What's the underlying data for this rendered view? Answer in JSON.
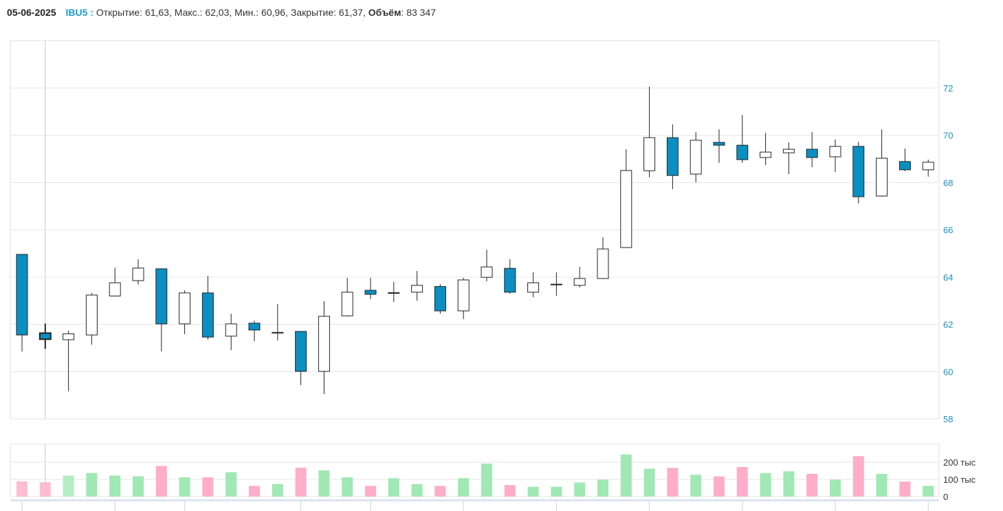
{
  "header": {
    "date": "05-06-2025",
    "ticker": "IBU5 :",
    "open_label": "Открытие:",
    "open": "61,63",
    "high_label": "Макс.:",
    "high": "62,03",
    "low_label": "Мин.:",
    "low": "60,96",
    "close_label": "Закрытие:",
    "close": "61,37",
    "volume_label": "Объём",
    "volume": "83 347"
  },
  "colors": {
    "down_body": "#0a8fc2",
    "up_body": "#ffffff",
    "down_volume": "#ffadc8",
    "up_volume": "#a0e8b4",
    "accent": "#1a9bd0"
  },
  "chart_data": [
    {
      "type": "candlestick",
      "ylim": [
        58,
        74
      ],
      "yticks": [
        "58",
        "60",
        "62",
        "64",
        "66",
        "68",
        "70",
        "72"
      ],
      "grid": true,
      "selected_index": 1,
      "candles": [
        [
          64.96,
          64.96,
          60.85,
          61.55
        ],
        [
          61.63,
          62.03,
          60.96,
          61.37
        ],
        [
          61.35,
          61.73,
          59.17,
          61.6
        ],
        [
          61.55,
          63.33,
          61.14,
          63.24
        ],
        [
          63.2,
          64.4,
          63.18,
          63.76
        ],
        [
          63.85,
          64.75,
          63.68,
          64.38
        ],
        [
          64.35,
          64.35,
          60.85,
          62.02
        ],
        [
          62.02,
          63.44,
          61.58,
          63.33
        ],
        [
          63.33,
          64.05,
          61.35,
          61.46
        ],
        [
          61.5,
          62.45,
          60.91,
          62.02
        ],
        [
          62.05,
          62.16,
          61.29,
          61.76
        ],
        [
          61.63,
          62.86,
          61.32,
          61.66
        ],
        [
          61.7,
          61.7,
          59.43,
          60.01
        ],
        [
          60.01,
          62.98,
          59.05,
          62.34
        ],
        [
          62.36,
          63.97,
          62.33,
          63.36
        ],
        [
          63.44,
          63.97,
          63.07,
          63.27
        ],
        [
          63.33,
          63.8,
          62.95,
          63.34
        ],
        [
          63.36,
          64.26,
          63.0,
          63.65
        ],
        [
          63.6,
          63.7,
          62.45,
          62.57
        ],
        [
          62.57,
          63.97,
          62.22,
          63.88
        ],
        [
          63.99,
          65.16,
          63.82,
          64.43
        ],
        [
          64.37,
          64.75,
          63.3,
          63.36
        ],
        [
          63.36,
          64.2,
          63.15,
          63.76
        ],
        [
          63.68,
          64.2,
          63.21,
          63.7
        ],
        [
          63.65,
          64.43,
          63.56,
          63.94
        ],
        [
          63.94,
          65.68,
          63.92,
          65.19
        ],
        [
          65.25,
          69.41,
          65.25,
          68.51
        ],
        [
          68.5,
          72.06,
          68.22,
          69.9
        ],
        [
          69.9,
          70.46,
          67.72,
          68.3
        ],
        [
          68.36,
          70.14,
          68.01,
          69.79
        ],
        [
          69.7,
          70.25,
          68.83,
          69.58
        ],
        [
          69.58,
          70.86,
          68.83,
          68.97
        ],
        [
          69.06,
          70.1,
          68.74,
          69.29
        ],
        [
          69.26,
          69.7,
          68.36,
          69.41
        ],
        [
          69.41,
          70.14,
          68.65,
          69.06
        ],
        [
          69.09,
          69.82,
          68.45,
          69.53
        ],
        [
          69.53,
          69.73,
          67.11,
          67.4
        ],
        [
          67.43,
          70.25,
          67.4,
          69.03
        ],
        [
          68.89,
          69.44,
          68.48,
          68.54
        ],
        [
          68.54,
          68.97,
          68.25,
          68.86
        ]
      ]
    },
    {
      "type": "bar",
      "ylim": [
        0,
        300000
      ],
      "yticks": [
        "0",
        "100 тыс",
        "200 тыс"
      ],
      "values": [
        88000,
        83347,
        122000,
        137000,
        122000,
        118000,
        178000,
        112000,
        112000,
        142000,
        62000,
        72000,
        168000,
        152000,
        112000,
        62000,
        107000,
        72000,
        62000,
        107000,
        192000,
        67000,
        57000,
        57000,
        82000,
        98000,
        245000,
        162000,
        167000,
        127000,
        117000,
        172000,
        137000,
        147000,
        132000,
        98000,
        235000,
        132000,
        87000,
        62000
      ]
    }
  ]
}
